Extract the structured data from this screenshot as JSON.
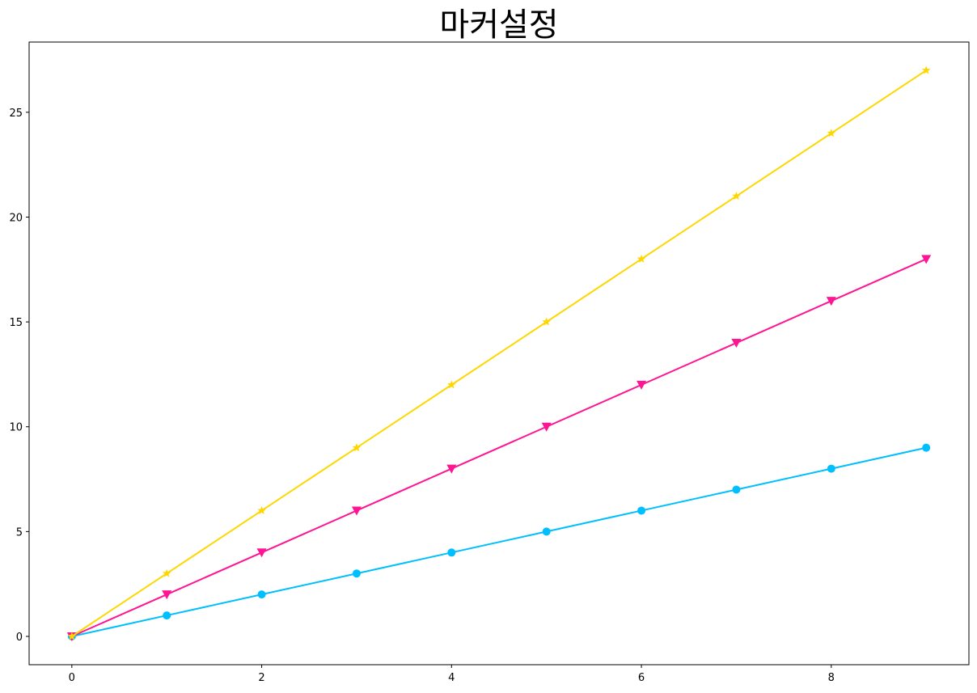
{
  "chart_data": {
    "type": "line",
    "title": "마커설정",
    "x": [
      0,
      1,
      2,
      3,
      4,
      5,
      6,
      7,
      8,
      9
    ],
    "series": [
      {
        "color": "#00bfff",
        "marker": "o",
        "values": [
          0,
          1,
          2,
          3,
          4,
          5,
          6,
          7,
          8,
          9
        ]
      },
      {
        "color": "#ff1493",
        "marker": "v",
        "values": [
          0,
          2,
          4,
          6,
          8,
          10,
          12,
          14,
          16,
          18
        ]
      },
      {
        "color": "#ffd700",
        "marker": "*",
        "values": [
          0,
          3,
          6,
          9,
          12,
          15,
          18,
          21,
          24,
          27
        ]
      }
    ],
    "xlim": [
      -0.45,
      9.45
    ],
    "ylim": [
      -1.35,
      28.35
    ],
    "xticks": [
      0,
      2,
      4,
      6,
      8
    ],
    "yticks": [
      0,
      5,
      10,
      15,
      20,
      25
    ],
    "grid": false
  }
}
